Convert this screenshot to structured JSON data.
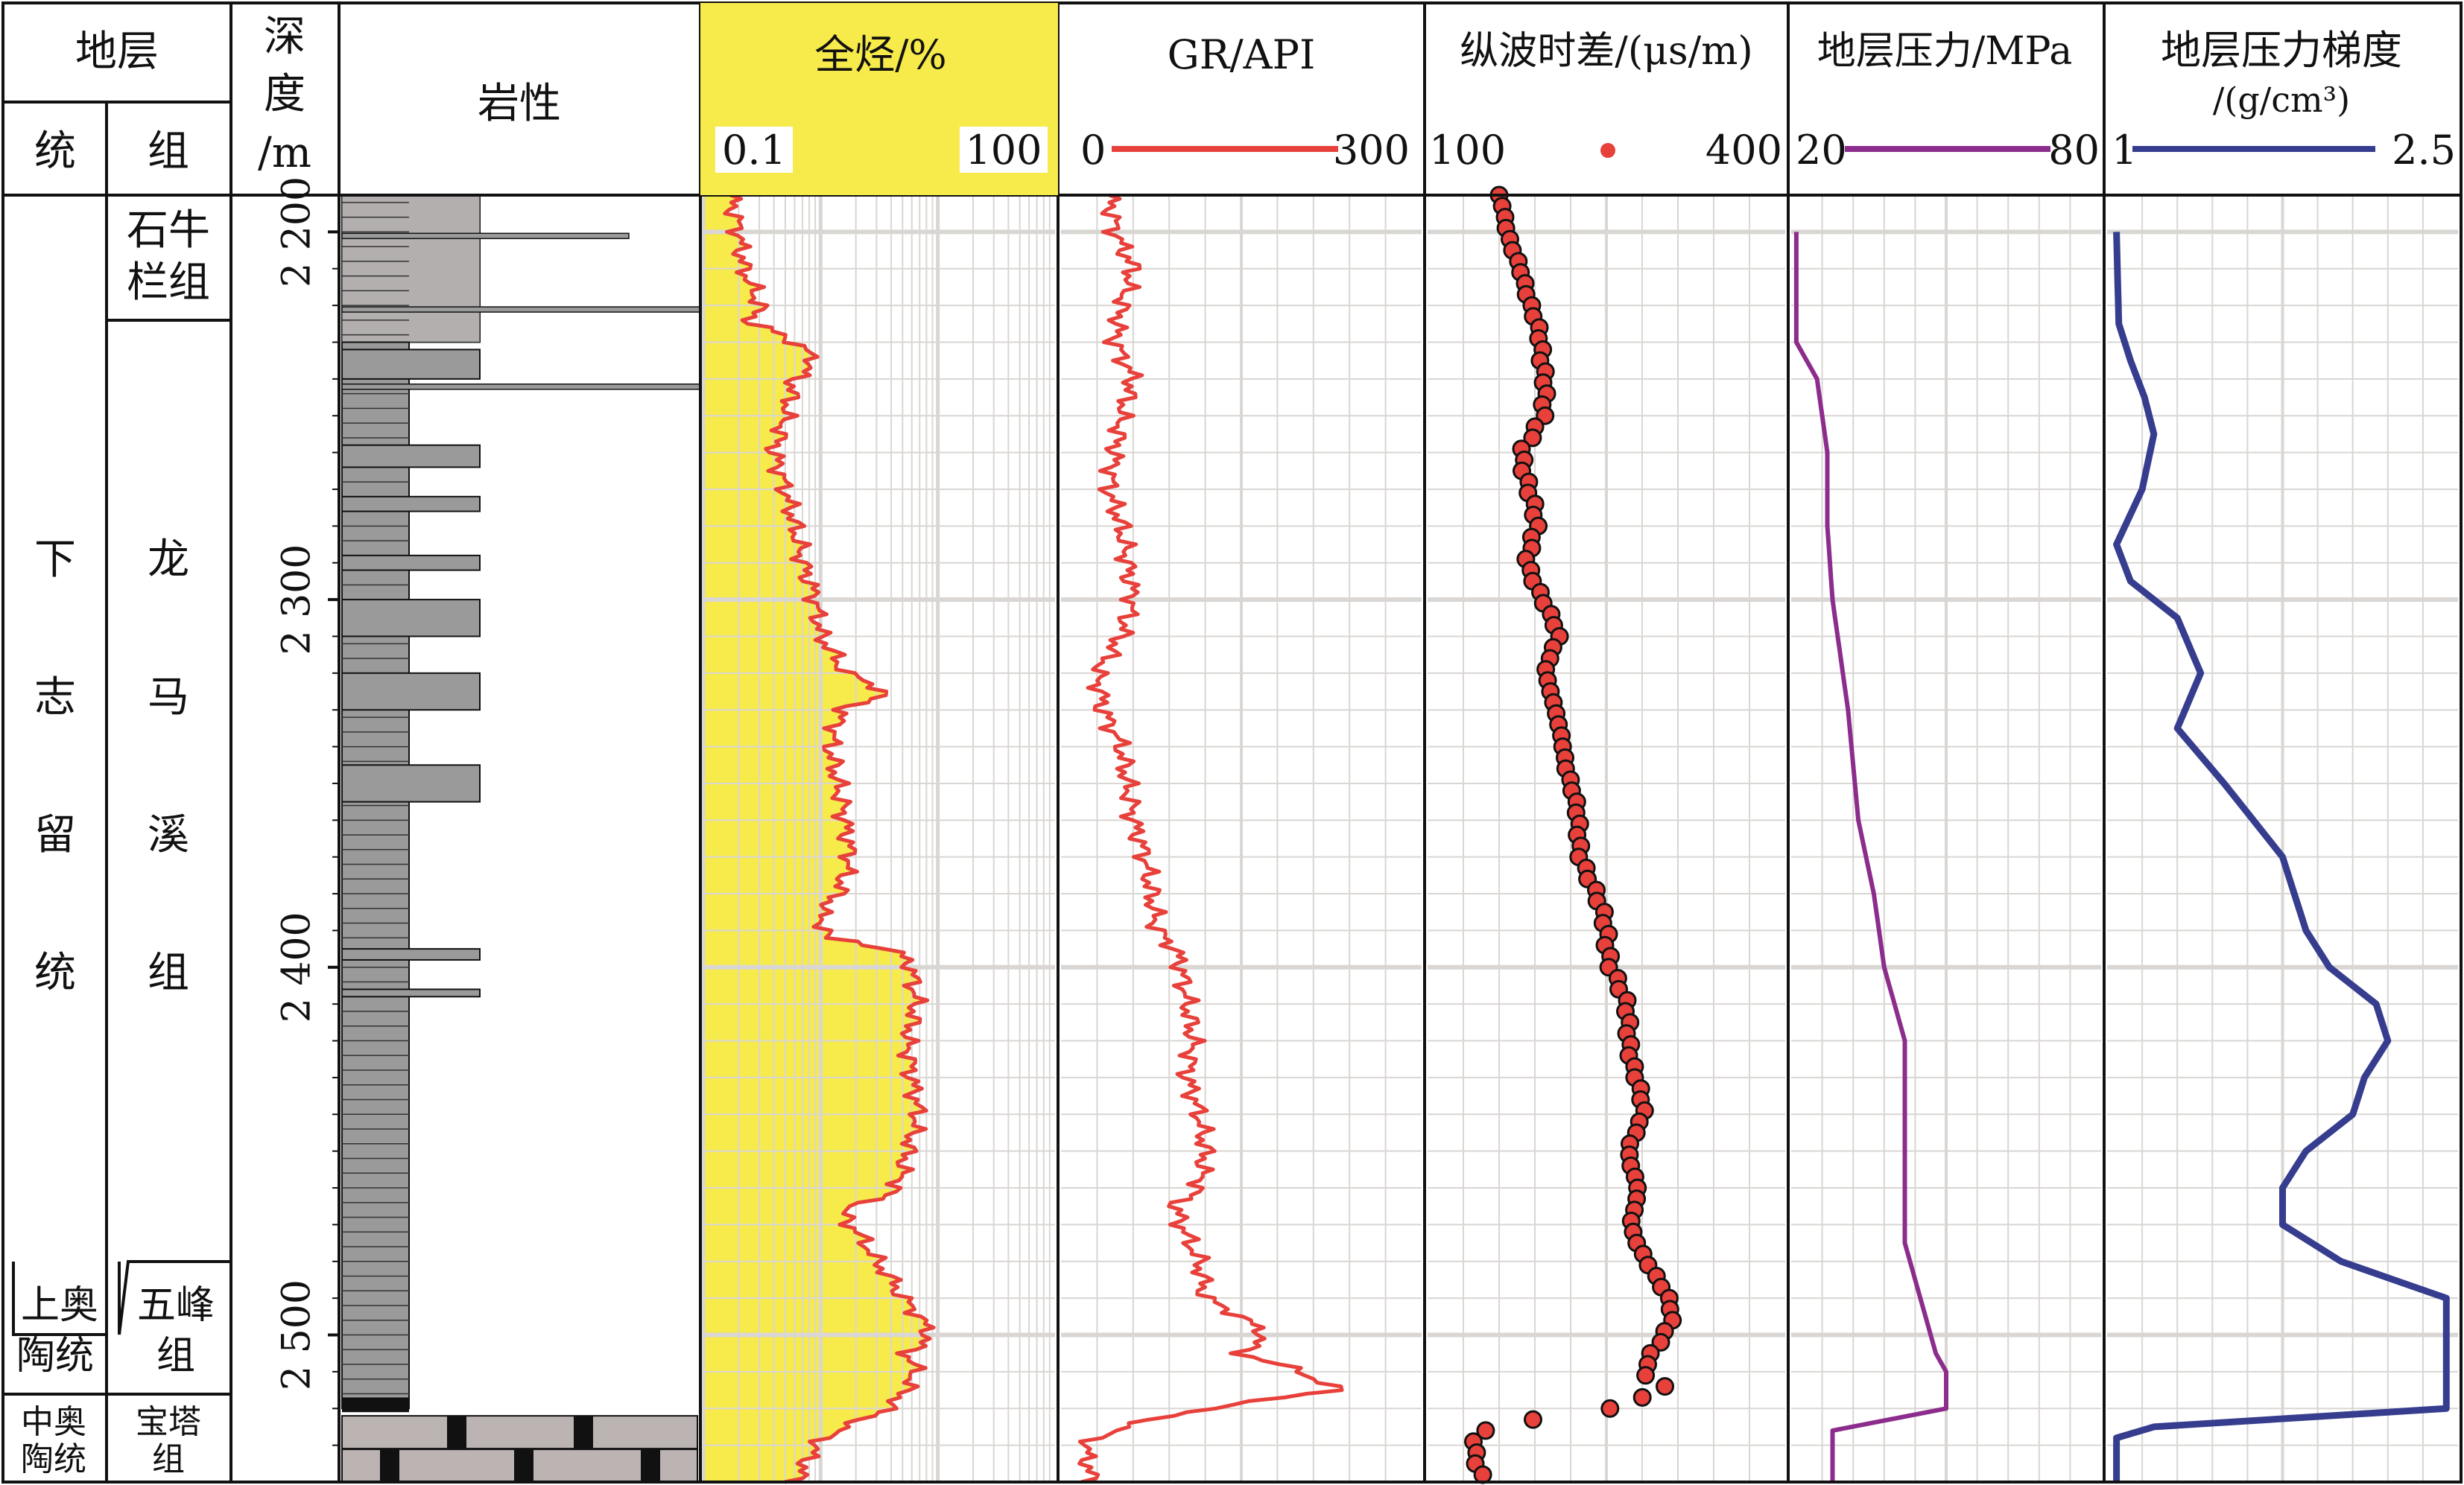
{
  "header": {
    "strata": "地层",
    "series": "统",
    "formation": "组",
    "depth_l1": "深",
    "depth_l2": "度",
    "depth_l3": "/m",
    "lithology": "岩性",
    "total_hc": "全烃/%",
    "total_hc_min": "0.1",
    "total_hc_max": "100",
    "gr": "GR/API",
    "gr_min": "0",
    "gr_max": "300",
    "sonic": "纵波时差/(μs/m)",
    "sonic_min": "100",
    "sonic_max": "400",
    "pressure": "地层压力/MPa",
    "pressure_min": "20",
    "pressure_max": "80",
    "gradient_l1": "地层压力梯度",
    "gradient_l2": "/(g/cm³)",
    "gradient_min": "1",
    "gradient_max": "2.5"
  },
  "strata": {
    "series_lower_silurian": [
      "下",
      "志",
      "留",
      "统"
    ],
    "series_upper_ordovician": [
      "上奥",
      "陶统"
    ],
    "series_middle_ordovician": [
      "中奥",
      "陶统"
    ],
    "formation_shiniulan": [
      "石牛",
      "栏组"
    ],
    "formation_longmaxi": [
      "龙",
      "马",
      "溪",
      "组"
    ],
    "formation_wufeng": [
      "五峰",
      "组"
    ],
    "formation_baota": [
      "宝塔",
      "组"
    ]
  },
  "depth_ticks": [
    "2 200",
    "2 300",
    "2 400",
    "2 500"
  ],
  "colors": {
    "yellow": "#f7ea4b",
    "red": "#e8403a",
    "purple": "#8c2c8c",
    "navy": "#363d8e",
    "shale": "#9a9a9a",
    "limestone": "#bcb4b2",
    "grid": "#d9d6d3"
  },
  "chart_data": {
    "type": "line",
    "depth_range": [
      2190,
      2540
    ],
    "depth_ticks": [
      2200,
      2300,
      2400,
      2500
    ],
    "tracks": [
      {
        "name": "全烃/%",
        "scale": "log",
        "range": [
          0.1,
          100
        ],
        "fill": "#f7ea4b",
        "color": "#e8403a",
        "points": [
          [
            2190,
            0.17
          ],
          [
            2200,
            0.2
          ],
          [
            2210,
            0.22
          ],
          [
            2220,
            0.3
          ],
          [
            2225,
            0.25
          ],
          [
            2230,
            0.6
          ],
          [
            2235,
            0.9
          ],
          [
            2240,
            0.6
          ],
          [
            2250,
            0.5
          ],
          [
            2260,
            0.4
          ],
          [
            2270,
            0.5
          ],
          [
            2280,
            0.6
          ],
          [
            2290,
            0.7
          ],
          [
            2300,
            0.9
          ],
          [
            2310,
            1.0
          ],
          [
            2320,
            1.6
          ],
          [
            2325,
            3.5
          ],
          [
            2330,
            1.5
          ],
          [
            2340,
            1.2
          ],
          [
            2350,
            1.4
          ],
          [
            2360,
            1.6
          ],
          [
            2370,
            1.8
          ],
          [
            2380,
            1.4
          ],
          [
            2385,
            1.0
          ],
          [
            2392,
            1.1
          ],
          [
            2396,
            4.5
          ],
          [
            2400,
            6.0
          ],
          [
            2410,
            6.5
          ],
          [
            2420,
            5.5
          ],
          [
            2430,
            6.0
          ],
          [
            2440,
            6.8
          ],
          [
            2450,
            5.5
          ],
          [
            2460,
            4.5
          ],
          [
            2466,
            1.5
          ],
          [
            2470,
            1.8
          ],
          [
            2480,
            3.0
          ],
          [
            2490,
            5.0
          ],
          [
            2495,
            7.0
          ],
          [
            2500,
            8.5
          ],
          [
            2505,
            5.5
          ],
          [
            2510,
            6.5
          ],
          [
            2518,
            4.5
          ],
          [
            2525,
            1.5
          ],
          [
            2530,
            0.9
          ],
          [
            2540,
            0.6
          ]
        ]
      },
      {
        "name": "GR/API",
        "scale": "linear",
        "range": [
          0,
          300
        ],
        "color": "#e8403a",
        "points": [
          [
            2190,
            40
          ],
          [
            2200,
            45
          ],
          [
            2210,
            60
          ],
          [
            2220,
            50
          ],
          [
            2230,
            45
          ],
          [
            2240,
            60
          ],
          [
            2250,
            50
          ],
          [
            2260,
            45
          ],
          [
            2270,
            40
          ],
          [
            2280,
            50
          ],
          [
            2290,
            55
          ],
          [
            2300,
            60
          ],
          [
            2310,
            50
          ],
          [
            2320,
            30
          ],
          [
            2330,
            35
          ],
          [
            2340,
            50
          ],
          [
            2350,
            55
          ],
          [
            2360,
            60
          ],
          [
            2370,
            70
          ],
          [
            2380,
            75
          ],
          [
            2390,
            80
          ],
          [
            2395,
            95
          ],
          [
            2400,
            100
          ],
          [
            2410,
            105
          ],
          [
            2420,
            110
          ],
          [
            2430,
            105
          ],
          [
            2440,
            115
          ],
          [
            2450,
            120
          ],
          [
            2460,
            115
          ],
          [
            2465,
            95
          ],
          [
            2470,
            100
          ],
          [
            2480,
            115
          ],
          [
            2490,
            120
          ],
          [
            2495,
            150
          ],
          [
            2500,
            170
          ],
          [
            2505,
            150
          ],
          [
            2510,
            200
          ],
          [
            2515,
            230
          ],
          [
            2520,
            120
          ],
          [
            2525,
            50
          ],
          [
            2530,
            20
          ],
          [
            2540,
            25
          ]
        ]
      },
      {
        "name": "纵波时差/(μs/m)",
        "scale": "linear",
        "range": [
          100,
          400
        ],
        "color": "#e8403a",
        "marker": "circle",
        "points": [
          [
            2190,
            160
          ],
          [
            2200,
            165
          ],
          [
            2210,
            180
          ],
          [
            2220,
            185
          ],
          [
            2230,
            195
          ],
          [
            2240,
            200
          ],
          [
            2250,
            195
          ],
          [
            2260,
            180
          ],
          [
            2270,
            185
          ],
          [
            2280,
            190
          ],
          [
            2290,
            185
          ],
          [
            2300,
            195
          ],
          [
            2310,
            210
          ],
          [
            2320,
            200
          ],
          [
            2330,
            205
          ],
          [
            2340,
            215
          ],
          [
            2350,
            220
          ],
          [
            2360,
            225
          ],
          [
            2370,
            230
          ],
          [
            2380,
            240
          ],
          [
            2390,
            250
          ],
          [
            2400,
            255
          ],
          [
            2410,
            265
          ],
          [
            2420,
            270
          ],
          [
            2430,
            275
          ],
          [
            2440,
            280
          ],
          [
            2450,
            270
          ],
          [
            2460,
            275
          ],
          [
            2470,
            270
          ],
          [
            2480,
            285
          ],
          [
            2490,
            300
          ],
          [
            2495,
            305
          ],
          [
            2500,
            300
          ],
          [
            2505,
            290
          ],
          [
            2510,
            280
          ],
          [
            2515,
            300
          ],
          [
            2520,
            250
          ],
          [
            2525,
            150
          ],
          [
            2530,
            140
          ],
          [
            2540,
            145
          ]
        ]
      },
      {
        "name": "地层压力/MPa",
        "scale": "linear",
        "range": [
          20,
          80
        ],
        "color": "#8c2c8c",
        "points": [
          [
            2200,
            21
          ],
          [
            2230,
            21
          ],
          [
            2240,
            25
          ],
          [
            2260,
            27
          ],
          [
            2280,
            27
          ],
          [
            2300,
            28
          ],
          [
            2330,
            31
          ],
          [
            2360,
            33
          ],
          [
            2380,
            36
          ],
          [
            2400,
            38
          ],
          [
            2410,
            40
          ],
          [
            2420,
            42
          ],
          [
            2460,
            42
          ],
          [
            2475,
            42
          ],
          [
            2490,
            45
          ],
          [
            2505,
            48
          ],
          [
            2510,
            50
          ],
          [
            2520,
            50
          ],
          [
            2526,
            28
          ],
          [
            2540,
            28
          ]
        ]
      },
      {
        "name": "地层压力梯度",
        "scale": "linear",
        "range": [
          1,
          2.5
        ],
        "color": "#363d8e",
        "points": [
          [
            2200,
            1.04
          ],
          [
            2225,
            1.05
          ],
          [
            2235,
            1.1
          ],
          [
            2245,
            1.16
          ],
          [
            2255,
            1.2
          ],
          [
            2270,
            1.15
          ],
          [
            2285,
            1.04
          ],
          [
            2295,
            1.1
          ],
          [
            2305,
            1.3
          ],
          [
            2320,
            1.4
          ],
          [
            2335,
            1.3
          ],
          [
            2350,
            1.5
          ],
          [
            2370,
            1.75
          ],
          [
            2390,
            1.85
          ],
          [
            2400,
            1.95
          ],
          [
            2410,
            2.15
          ],
          [
            2420,
            2.2
          ],
          [
            2430,
            2.1
          ],
          [
            2440,
            2.05
          ],
          [
            2450,
            1.85
          ],
          [
            2460,
            1.75
          ],
          [
            2470,
            1.75
          ],
          [
            2480,
            2.0
          ],
          [
            2490,
            2.45
          ],
          [
            2500,
            2.45
          ],
          [
            2520,
            2.45
          ],
          [
            2525,
            1.2
          ],
          [
            2528,
            1.04
          ],
          [
            2540,
            1.04
          ]
        ]
      }
    ]
  }
}
